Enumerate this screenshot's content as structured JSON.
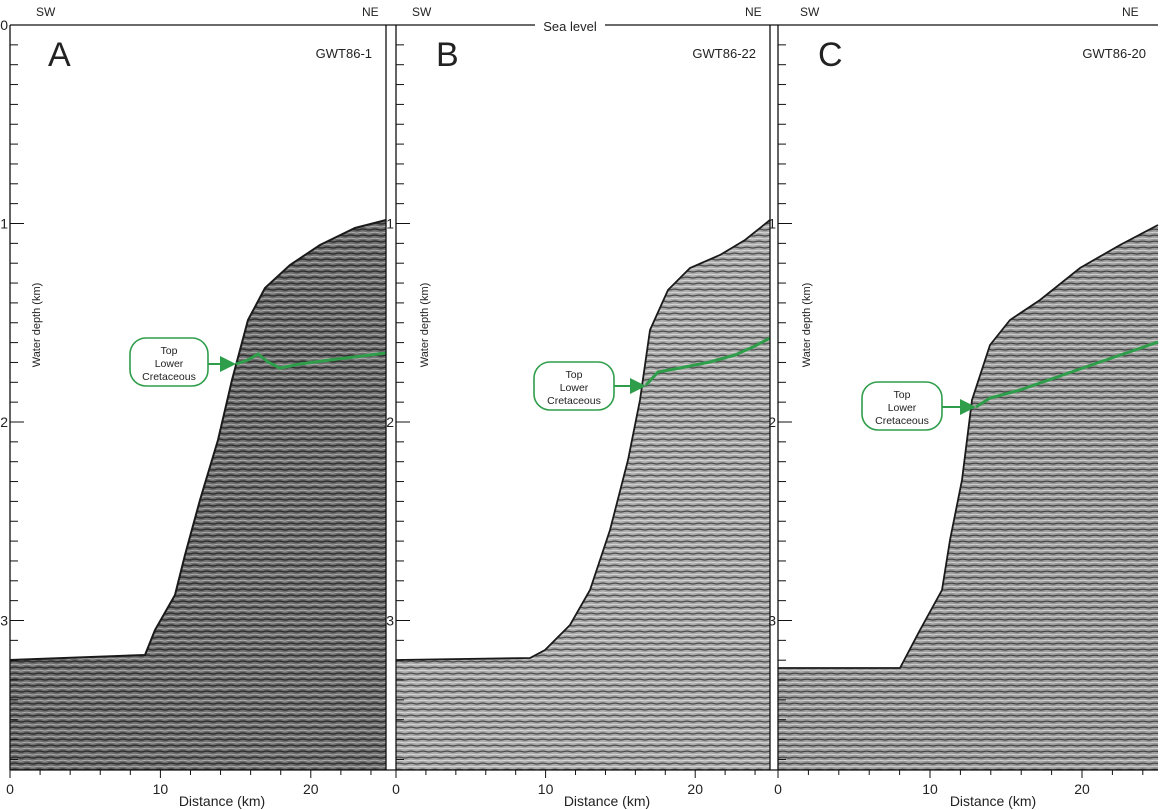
{
  "sea_level_label": "Sea level",
  "depth_axis": {
    "label": "Water depth (km)",
    "ticks": [
      "0",
      "1",
      "2",
      "3"
    ]
  },
  "distance_axis": {
    "label": "Distance (km)",
    "ticks": [
      "0",
      "10",
      "20"
    ]
  },
  "panels": [
    {
      "letter": "A",
      "profile": "GWT86-1",
      "dir_left": "SW",
      "dir_right": "NE",
      "callout": [
        "Top",
        "Lower",
        "Cretaceous"
      ]
    },
    {
      "letter": "B",
      "profile": "GWT86-22",
      "dir_left": "SW",
      "dir_right": "NE",
      "callout": [
        "Top",
        "Lower",
        "Cretaceous"
      ]
    },
    {
      "letter": "C",
      "profile": "GWT86-20",
      "dir_left": "SW",
      "dir_right": "NE",
      "callout": [
        "Top",
        "Lower",
        "Cretaceous"
      ]
    }
  ],
  "colors": {
    "horizon": "#2e9e4a",
    "seismic_dark": "#3a3a3a",
    "seismic_light": "#8a8a8a"
  }
}
